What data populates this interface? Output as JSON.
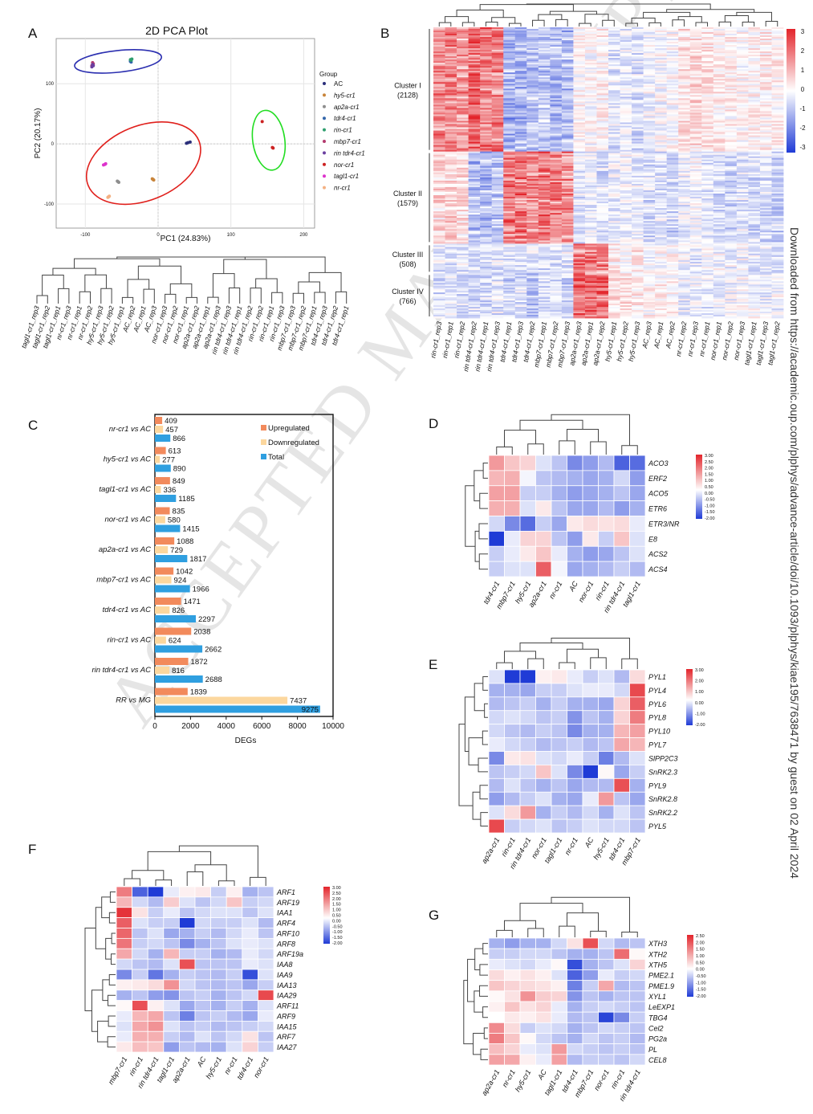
{
  "side_text": "Downloaded from https://academic.oup.com/plphys/advance-article/doi/10.1093/plphys/kiae195/7638471 by guest on 02 April 2024",
  "watermark": "ACCEPTED MANUSCRIPT",
  "panel_labels": {
    "A": "A",
    "B": "B",
    "C": "C",
    "D": "D",
    "E": "E",
    "F": "F",
    "G": "G"
  },
  "colors": {
    "red": "#e3242b",
    "blue": "#1f3bd6",
    "white": "#ffffff",
    "orange": "#f28a5c",
    "peach": "#fcd79e",
    "sky": "#2f9fe0"
  },
  "chart_data": [
    {
      "id": "A",
      "type": "scatter",
      "title": "2D PCA Plot",
      "xlabel": "PC1 (24.83%)",
      "ylabel": "PC2 (20.17%)",
      "xlim": [
        -140,
        215
      ],
      "ylim": [
        -140,
        175
      ],
      "xticks": [
        -100,
        0,
        100,
        200
      ],
      "yticks": [
        -100,
        0,
        100
      ],
      "legend_title": "Group",
      "groups": [
        {
          "name": "AC",
          "color": "#2b2f7a",
          "points": [
            [
              41,
              2
            ],
            [
              44,
              3
            ],
            [
              39,
              1
            ]
          ]
        },
        {
          "name": "hy5-cr1",
          "color": "#c8843a",
          "points": [
            [
              -7,
              -59
            ],
            [
              -6,
              -60
            ],
            [
              -8,
              -58
            ]
          ]
        },
        {
          "name": "ap2a-cr1",
          "color": "#8e8e8e",
          "points": [
            [
              -55,
              -63
            ],
            [
              -54,
              -64
            ],
            [
              -56,
              -62
            ]
          ]
        },
        {
          "name": "tdr4-cr1",
          "color": "#3366aa",
          "points": [
            [
              -38,
              137
            ],
            [
              -38,
              138
            ],
            [
              -37,
              136
            ]
          ]
        },
        {
          "name": "rin-cr1",
          "color": "#2e9e6e",
          "points": [
            [
              -38,
              140
            ],
            [
              -37,
              139
            ],
            [
              -36,
              141
            ]
          ]
        },
        {
          "name": "mbp7-cr1",
          "color": "#b33a6e",
          "points": [
            [
              -90,
              135
            ],
            [
              -91,
              130
            ],
            [
              -89,
              133
            ]
          ]
        },
        {
          "name": "rin tdr4-cr1",
          "color": "#6b3fa0",
          "points": [
            [
              -89,
              130
            ],
            [
              -91,
              128
            ],
            [
              -90,
              132
            ]
          ]
        },
        {
          "name": "nor-cr1",
          "color": "#cc2222",
          "points": [
            [
              143,
              37
            ],
            [
              157,
              -6
            ],
            [
              158,
              -7
            ]
          ]
        },
        {
          "name": "tagl1-cr1",
          "color": "#dd33cc",
          "points": [
            [
              -73,
              -34
            ],
            [
              -75,
              -35
            ],
            [
              -72,
              -33
            ]
          ]
        },
        {
          "name": "nr-cr1",
          "color": "#f4b183",
          "points": [
            [
              -68,
              -88
            ],
            [
              -69,
              -89
            ],
            [
              -67,
              -87
            ]
          ]
        }
      ],
      "ellipses": [
        {
          "color": "#2b2fb0",
          "cx": -55,
          "cy": 137,
          "rx": 60,
          "ry": 18,
          "rot": -6
        },
        {
          "color": "#e0201c",
          "cx": -20,
          "cy": -32,
          "rx": 82,
          "ry": 62,
          "rot": -22
        },
        {
          "color": "#22dd22",
          "cx": 152,
          "cy": 6,
          "rx": 22,
          "ry": 50,
          "rot": -8
        }
      ],
      "dendrogram_leaves": [
        "tagl1-cr1_rep3",
        "tagl1-cr1_rep2",
        "tagl1-cr1_rep1",
        "nr-cr1_rep3",
        "nr-cr1_rep1",
        "nr-cr1_rep2",
        "hy5-cr1_rep3",
        "hy5-cr1_rep2",
        "hy5-cr1_rep1",
        "AC_rep2",
        "AC_rep1",
        "AC_rep3",
        "nor-cr1_rep3",
        "nor-cr1_rep2",
        "nor-cr1_rep1",
        "ap2a-cr1_rep2",
        "ap2a-cr1_rep1",
        "ap2a-cr1_rep3",
        "rin tdr4-cr1_rep3",
        "rin tdr4-cr1_rep1",
        "rin tdr4-cr1_rep2",
        "rin-cr1_rep2",
        "rin-cr1_rep1",
        "rin-cr1_rep3",
        "mbp7-cr1_rep3",
        "mbp7-cr1_rep2",
        "mbp7-cr1_rep1",
        "tdr4-cr1_rep3",
        "tdr4-cr1_rep2",
        "tdr4-cr1_rep1"
      ]
    },
    {
      "id": "B",
      "type": "heatmap",
      "columns": [
        "rin-cr1_rep3",
        "rin-cr1_rep1",
        "rin-cr1_rep2",
        "rin tdr4-cr1_rep2",
        "rin tdr4-cr1_rep1",
        "rin tdr4-cr1_rep3",
        "tdr4-cr1_rep1",
        "tdr4-cr1_rep3",
        "tdr4-cr1_rep2",
        "mbp7-cr1_rep1",
        "mbp7-cr1_rep2",
        "mbp7-cr1_rep3",
        "ap2a-cr1_rep3",
        "ap2a-cr1_rep1",
        "ap2a-cr1_rep2",
        "hy5-cr1_rep1",
        "hy5-cr1_rep2",
        "hy5-cr1_rep3",
        "AC_rep3",
        "AC_rep1",
        "AC_rep2",
        "nr-cr1_rep2",
        "nr-cr1_rep3",
        "nr-cr1_rep1",
        "nor-cr1_rep1",
        "nor-cr1_rep2",
        "nor-cr1_rep3",
        "tagl1-cr1_rep1",
        "tagl1-cr1_rep3",
        "tagl1-cr1_rep2"
      ],
      "clusters": [
        {
          "name": "Cluster I",
          "count": "(2128)",
          "n": 2128
        },
        {
          "name": "Cluster II",
          "count": "(1579)",
          "n": 1579
        },
        {
          "name": "Cluster III",
          "count": "(508)",
          "n": 508
        },
        {
          "name": "Cluster IV",
          "count": "(766)",
          "n": 766
        }
      ],
      "legend_ticks": [
        "3",
        "2",
        "1",
        "0",
        "-1",
        "-2",
        "-3"
      ],
      "range": [
        -3,
        3
      ]
    },
    {
      "id": "C",
      "type": "bar",
      "xlabel": "DEGs",
      "xlim": [
        0,
        10000
      ],
      "xticks": [
        "0",
        "2000",
        "4000",
        "6000",
        "8000",
        "10000"
      ],
      "categories": [
        "nr-cr1 vs AC",
        "hy5-cr1 vs AC",
        "tagl1-cr1 vs AC",
        "nor-cr1 vs AC",
        "ap2a-cr1 vs AC",
        "mbp7-cr1 vs AC",
        "tdr4-cr1 vs AC",
        "rin-cr1 vs AC",
        "rin tdr4-cr1 vs AC",
        "RR vs MG"
      ],
      "series": [
        {
          "name": "Upregulated",
          "color": "#f28a5c",
          "values": [
            409,
            613,
            849,
            835,
            1088,
            1042,
            1471,
            2038,
            1872,
            1839
          ]
        },
        {
          "name": "Downregulated",
          "color": "#fcd79e",
          "values": [
            457,
            277,
            336,
            580,
            729,
            924,
            826,
            624,
            816,
            7437
          ]
        },
        {
          "name": "Total",
          "color": "#2f9fe0",
          "values": [
            866,
            890,
            1185,
            1415,
            1817,
            1966,
            2297,
            2662,
            2688,
            9275
          ]
        }
      ]
    },
    {
      "id": "D",
      "type": "heatmap",
      "columns": [
        "tdr4-cr1",
        "mbp7-cr1",
        "hy5-cr1",
        "ap2a-cr1",
        "nr-cr1",
        "AC",
        "nor-cr1",
        "rin-cr1",
        "rin tdr4-cr1",
        "tagl1-cr1"
      ],
      "rows": [
        "ACO3",
        "ERF2",
        "ACO5",
        "ETR6",
        "ETR3/NR",
        "E8",
        "ACS2",
        "ACS4"
      ],
      "values": [
        [
          1.4,
          0.8,
          0.6,
          -0.3,
          -0.6,
          -1.2,
          -1.0,
          -0.7,
          -1.6,
          -1.5
        ],
        [
          1.0,
          1.1,
          -0.1,
          -0.6,
          -0.7,
          -0.8,
          -0.9,
          -0.8,
          -0.4,
          -1.0
        ],
        [
          1.3,
          1.3,
          -0.5,
          -0.5,
          -0.8,
          -1.0,
          -0.9,
          -0.8,
          -0.6,
          -0.9
        ],
        [
          1.1,
          1.1,
          -0.3,
          0.3,
          -0.6,
          -0.9,
          -0.9,
          -0.7,
          -1.0,
          -0.8
        ],
        [
          -0.4,
          -1.2,
          -1.5,
          -0.5,
          -0.9,
          0.3,
          0.5,
          0.4,
          0.5,
          -0.2
        ],
        [
          -2.0,
          -0.2,
          0.6,
          0.6,
          -0.6,
          -1.0,
          0.3,
          -0.5,
          0.8,
          -0.3
        ],
        [
          -0.5,
          -0.2,
          0.3,
          0.8,
          -0.2,
          -0.8,
          -1.0,
          -0.9,
          -0.6,
          -0.3
        ],
        [
          -0.5,
          -0.3,
          -0.3,
          2.2,
          -0.1,
          -0.9,
          -0.8,
          -0.7,
          -0.5,
          -0.7
        ]
      ],
      "legend_ticks": [
        "3.00",
        "2.50",
        "2.00",
        "1.50",
        "1.00",
        "0.50",
        "0.00",
        "-0.50",
        "-1.00",
        "-1.50",
        "-2.00"
      ]
    },
    {
      "id": "E",
      "type": "heatmap",
      "columns": [
        "ap2a-cr1",
        "rin-cr1",
        "rin tdr4-cr1",
        "nor-cr1",
        "tagl1-cr1",
        "nr-cr1",
        "AC",
        "hy5-cr1",
        "tdr4-cr1",
        "mbp7-cr1"
      ],
      "rows": [
        "PYL1",
        "PYL4",
        "PYL6",
        "PYL8",
        "PYL10",
        "PYL7",
        "SlPP2C3",
        "SnRK2.3",
        "PYL9",
        "SnRK2.8",
        "SnRK2.2",
        "PYL5"
      ],
      "values": [
        [
          -0.3,
          -2.0,
          -2.0,
          0.2,
          0.3,
          -0.2,
          -0.5,
          -0.3,
          -0.7,
          0.5
        ],
        [
          -0.8,
          -0.8,
          -0.9,
          -0.5,
          -0.5,
          -0.3,
          -0.2,
          -0.2,
          -0.4,
          2.5
        ],
        [
          -0.7,
          -0.6,
          -0.5,
          -0.8,
          -0.5,
          -0.8,
          -0.8,
          -0.9,
          0.6,
          2.2
        ],
        [
          -0.4,
          -0.3,
          -0.4,
          -0.6,
          -0.5,
          -1.1,
          -0.6,
          -0.8,
          0.6,
          1.8
        ],
        [
          -0.4,
          -0.6,
          -0.7,
          -0.5,
          -0.6,
          -1.2,
          -0.8,
          -0.8,
          1.0,
          1.3
        ],
        [
          -0.2,
          -0.4,
          -0.5,
          -0.7,
          -0.6,
          -0.5,
          -0.7,
          -0.6,
          1.2,
          1.0
        ],
        [
          -1.2,
          0.3,
          0.4,
          -0.3,
          -0.4,
          -0.2,
          -0.5,
          -1.3,
          -0.7,
          -0.3
        ],
        [
          -0.6,
          -0.5,
          -0.4,
          0.8,
          -0.3,
          -1.2,
          -2.0,
          0.1,
          -0.9,
          -0.5
        ],
        [
          -0.7,
          -0.3,
          -0.6,
          -0.8,
          -0.6,
          -0.9,
          -0.7,
          -0.7,
          2.4,
          -0.8
        ],
        [
          -1.0,
          -0.7,
          -0.5,
          -0.3,
          -0.8,
          -0.9,
          -0.2,
          1.4,
          -0.6,
          -0.9
        ],
        [
          -0.3,
          0.5,
          1.4,
          -0.8,
          -0.5,
          -0.7,
          -0.4,
          -0.8,
          -0.3,
          -0.6
        ],
        [
          2.5,
          -0.5,
          -0.4,
          -0.3,
          -0.6,
          -0.5,
          -0.3,
          -0.4,
          -0.4,
          -0.6
        ]
      ],
      "legend_ticks": [
        "3.00",
        "2.00",
        "1.00",
        "0.00",
        "-1.00",
        "-2.00"
      ]
    },
    {
      "id": "F",
      "type": "heatmap",
      "columns": [
        "mbp7-cr1",
        "rin-cr1",
        "rin tdr4-cr1",
        "tagl1-cr1",
        "ap2a-cr1",
        "AC",
        "hy5-cr1",
        "nr-cr1",
        "tdr4-cr1",
        "nor-cr1"
      ],
      "rows": [
        "ARF1",
        "ARF19",
        "IAA1",
        "ARF4",
        "ARF10",
        "ARF8",
        "ARF19a",
        "IAA8",
        "IAA9",
        "IAA13",
        "IAA29",
        "ARF11",
        "ARF9",
        "IAA15",
        "ARF7",
        "IAA27"
      ],
      "values": [
        [
          1.8,
          -1.6,
          -2.0,
          -0.2,
          0.2,
          0.3,
          -0.5,
          0.2,
          -0.8,
          -0.6
        ],
        [
          1.0,
          -0.4,
          -0.7,
          0.7,
          -0.3,
          -0.6,
          -0.4,
          0.8,
          -0.5,
          -0.4
        ],
        [
          2.8,
          0.4,
          -0.5,
          -0.2,
          -0.6,
          -0.4,
          -0.3,
          -0.3,
          -0.6,
          -0.3
        ],
        [
          2.2,
          -0.3,
          -0.5,
          -0.5,
          -2.0,
          -0.4,
          -0.5,
          -0.5,
          -0.3,
          -0.7
        ],
        [
          2.1,
          -0.6,
          -0.3,
          -0.9,
          -0.8,
          -0.5,
          -0.7,
          -0.4,
          -0.2,
          -0.6
        ],
        [
          1.9,
          -0.5,
          -0.4,
          -0.6,
          -1.2,
          -0.8,
          -0.6,
          -0.3,
          -0.2,
          -0.3
        ],
        [
          1.2,
          -0.4,
          -0.8,
          1.0,
          -0.5,
          -0.5,
          -0.8,
          -0.7,
          -0.2,
          -0.4
        ],
        [
          -0.4,
          -0.6,
          -0.7,
          -0.3,
          2.4,
          -0.6,
          -0.6,
          -0.6,
          -0.2,
          -0.3
        ],
        [
          -1.2,
          -0.5,
          -1.4,
          -0.8,
          -0.5,
          -0.6,
          -0.7,
          -0.5,
          -1.8,
          -0.3
        ],
        [
          0.2,
          0.3,
          0.5,
          1.5,
          -0.4,
          -0.6,
          -0.7,
          -0.6,
          -0.9,
          -0.5
        ],
        [
          -0.8,
          -0.6,
          -1.0,
          -1.1,
          -0.6,
          -0.5,
          -0.8,
          -0.6,
          -0.4,
          2.5
        ],
        [
          0.1,
          2.4,
          0.2,
          -0.3,
          -0.9,
          -0.6,
          -0.8,
          -0.5,
          -0.8,
          -0.3
        ],
        [
          -0.2,
          1.0,
          1.2,
          -0.6,
          -1.3,
          -0.6,
          -0.5,
          -0.7,
          -0.9,
          -0.2
        ],
        [
          -0.3,
          1.2,
          1.5,
          -0.3,
          -0.6,
          -0.5,
          -0.7,
          -0.6,
          -0.5,
          -0.4
        ],
        [
          -0.2,
          1.1,
          1.1,
          -0.5,
          -0.7,
          -0.3,
          -0.6,
          -0.4,
          0.4,
          -0.6
        ],
        [
          0.3,
          0.9,
          0.8,
          -1.0,
          -0.6,
          -0.7,
          -0.8,
          -0.3,
          0.6,
          -0.5
        ]
      ],
      "legend_ticks": [
        "3.00",
        "2.50",
        "2.00",
        "1.50",
        "1.00",
        "0.50",
        "0.00",
        "-0.50",
        "-1.00",
        "-1.50",
        "-2.00"
      ]
    },
    {
      "id": "G",
      "type": "heatmap",
      "columns": [
        "ap2a-cr1",
        "nr-cr1",
        "hy5-cr1",
        "AC",
        "tagl1-cr1",
        "tdr4-cr1",
        "mbp7-cr1",
        "nor-cr1",
        "rin-cr1",
        "rin tdr4-cr1"
      ],
      "rows": [
        "XTH3",
        "XTH2",
        "XTH5",
        "PME2.1",
        "PME1.9",
        "XYL1",
        "LeEXP1",
        "TBG4",
        "Cel2",
        "PG2a",
        "PL",
        "CEL8"
      ],
      "values": [
        [
          -0.8,
          -1.0,
          -0.8,
          -0.8,
          -0.4,
          0.4,
          2.4,
          -0.4,
          -0.7,
          -0.6
        ],
        [
          -0.5,
          -0.5,
          -0.4,
          -0.4,
          -0.6,
          -0.8,
          -0.8,
          -0.6,
          2.0,
          0.1
        ],
        [
          -0.2,
          -0.3,
          -0.4,
          -0.2,
          0.1,
          -1.8,
          -0.8,
          -0.6,
          -0.3,
          0.6
        ],
        [
          0.5,
          0.2,
          0.4,
          0.2,
          -0.3,
          -1.6,
          -1.0,
          -0.2,
          -0.5,
          -0.4
        ],
        [
          0.8,
          0.6,
          0.5,
          0.4,
          0.2,
          -1.3,
          -0.5,
          1.2,
          -0.7,
          -0.6
        ],
        [
          0.1,
          0.4,
          1.5,
          0.7,
          0.6,
          -1.1,
          -0.6,
          -0.8,
          -0.6,
          -0.6
        ],
        [
          0.2,
          0.8,
          0.4,
          0.6,
          -0.2,
          -0.8,
          -0.5,
          -0.4,
          -0.5,
          -0.6
        ],
        [
          0.0,
          0.3,
          0.2,
          0.4,
          -0.2,
          -0.7,
          -0.6,
          -1.9,
          -1.2,
          -0.5
        ],
        [
          1.6,
          0.5,
          -0.5,
          -0.3,
          -0.4,
          -0.8,
          -0.6,
          -0.4,
          -0.5,
          -0.6
        ],
        [
          1.8,
          0.8,
          0.1,
          -0.4,
          -0.6,
          -0.8,
          -0.4,
          -0.6,
          -0.5,
          -0.7
        ],
        [
          0.9,
          0.6,
          -0.2,
          -0.3,
          1.4,
          -0.4,
          -0.5,
          -0.6,
          -0.5,
          -0.6
        ],
        [
          1.3,
          1.2,
          0.2,
          -0.2,
          1.3,
          -0.7,
          -0.5,
          -0.5,
          -0.6,
          -0.4
        ]
      ],
      "legend_ticks": [
        "2.50",
        "2.00",
        "1.50",
        "1.00",
        "0.50",
        "0.00",
        "-0.50",
        "-1.00",
        "-1.50",
        "-2.00"
      ]
    }
  ]
}
